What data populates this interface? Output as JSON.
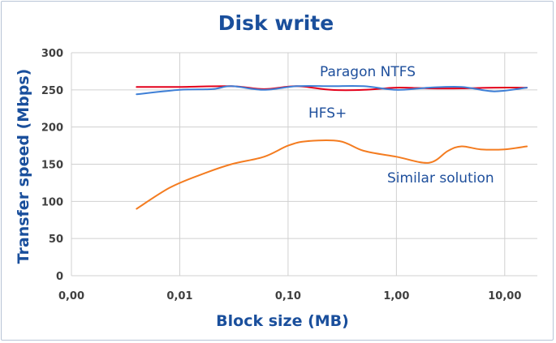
{
  "chart_data": {
    "type": "line",
    "title": "Disk write",
    "xlabel": "Block size (MB)",
    "ylabel": "Transfer speed (Mbps)",
    "x_scale": "log",
    "xlim": [
      0.001,
      20
    ],
    "ylim": [
      0,
      300
    ],
    "x_ticks": [
      {
        "value": 0.001,
        "label": "0,00"
      },
      {
        "value": 0.01,
        "label": "0,01"
      },
      {
        "value": 0.1,
        "label": "0,10"
      },
      {
        "value": 1,
        "label": "1,00"
      },
      {
        "value": 10,
        "label": "10,00"
      }
    ],
    "y_ticks": [
      0,
      50,
      100,
      150,
      200,
      250,
      300
    ],
    "grid": "horizontal",
    "colors": {
      "title": "#1a4f9c",
      "axis_title": "#1a4f9c",
      "series_label": "#1e4f9c",
      "grid": "#d0d0d0"
    },
    "series": [
      {
        "name": "Paragon NTFS",
        "color": "#e3001b",
        "x": [
          0.004,
          0.01,
          0.03,
          0.06,
          0.12,
          0.25,
          0.5,
          1,
          2,
          4,
          8,
          16
        ],
        "y": [
          254,
          254,
          255,
          251,
          255,
          250,
          250,
          253,
          252,
          252,
          253,
          253
        ]
      },
      {
        "name": "HFS+",
        "color": "#3e7fd6",
        "x": [
          0.004,
          0.01,
          0.02,
          0.03,
          0.06,
          0.12,
          0.25,
          0.5,
          1,
          2,
          4,
          8,
          16
        ],
        "y": [
          244,
          250,
          251,
          255,
          250,
          255,
          255,
          255,
          250,
          253,
          254,
          248,
          253
        ]
      },
      {
        "name": "Similar solution",
        "color": "#f47c20",
        "x": [
          0.004,
          0.008,
          0.015,
          0.03,
          0.06,
          0.1,
          0.15,
          0.3,
          0.5,
          1,
          2,
          3,
          4,
          6,
          10,
          16
        ],
        "y": [
          90,
          118,
          135,
          150,
          160,
          175,
          181,
          181,
          168,
          160,
          152,
          168,
          174,
          170,
          170,
          174
        ]
      }
    ]
  }
}
